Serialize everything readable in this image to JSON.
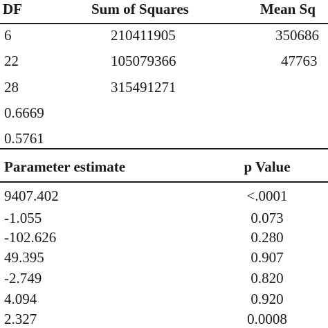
{
  "anova": {
    "headers": {
      "df": "DF",
      "sum_of_squares": "Sum of Squares",
      "mean_square": "Mean Sq"
    },
    "rows": [
      {
        "df": "6",
        "sum_of_squares": "210411905",
        "mean_square": "350686"
      },
      {
        "df": "22",
        "sum_of_squares": "105079366",
        "mean_square": "47763"
      },
      {
        "df": "28",
        "sum_of_squares": "315491271",
        "mean_square": ""
      }
    ],
    "extra_values": [
      "0.6669",
      "0.5761"
    ]
  },
  "parameters": {
    "headers": {
      "estimate": "Parameter estimate",
      "p_value": "p Value"
    },
    "rows": [
      {
        "estimate": "9407.402",
        "p_value": "<.0001"
      },
      {
        "estimate": "-1.055",
        "p_value": "0.073"
      },
      {
        "estimate": "-102.626",
        "p_value": "0.280"
      },
      {
        "estimate": "49.395",
        "p_value": "0.907"
      },
      {
        "estimate": "-2.749",
        "p_value": "0.820"
      },
      {
        "estimate": "4.094",
        "p_value": "0.920"
      },
      {
        "estimate": "2.327",
        "p_value": "0.0008"
      }
    ]
  }
}
